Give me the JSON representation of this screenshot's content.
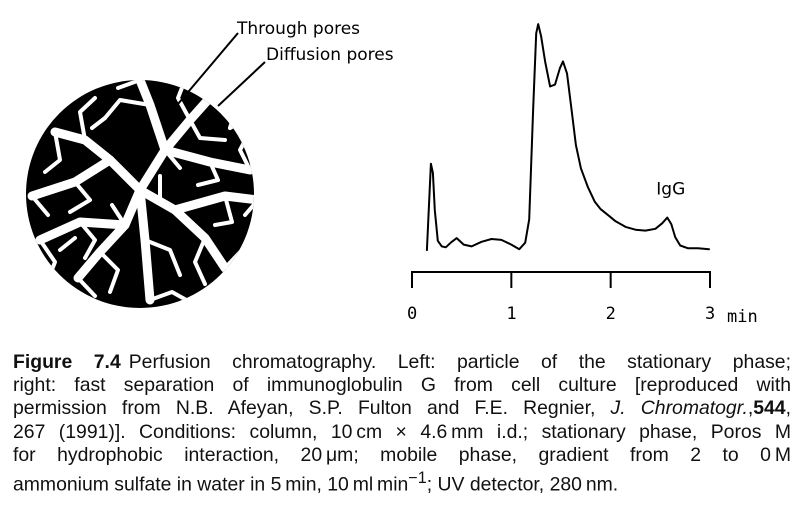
{
  "particle": {
    "label_through": "Through pores",
    "label_diffusion": "Diffusion pores"
  },
  "chart_data": {
    "type": "line",
    "title": "",
    "xlabel": "min",
    "ylabel": "",
    "xlim": [
      0,
      3
    ],
    "xticks": [
      "0",
      "1",
      "2",
      "3"
    ],
    "grid": false,
    "annotations": [
      {
        "text": "IgG",
        "x": 2.58,
        "y": 0.62
      }
    ],
    "series": [
      {
        "x": [
          0.15,
          0.19,
          0.21,
          0.23,
          0.26,
          0.3,
          0.34,
          0.39,
          0.45,
          0.52,
          0.6,
          0.7,
          0.8,
          0.9,
          1.0,
          1.08,
          1.14,
          1.18,
          1.22,
          1.25,
          1.27,
          1.3,
          1.34,
          1.39,
          1.44,
          1.49,
          1.52,
          1.56,
          1.61,
          1.65,
          1.7,
          1.77,
          1.84,
          1.9,
          1.97,
          2.05,
          2.15,
          2.25,
          2.35,
          2.45,
          2.52,
          2.57,
          2.61,
          2.65,
          2.7,
          2.78,
          2.88,
          2.99
        ],
        "y": [
          0.02,
          0.95,
          0.85,
          0.45,
          0.12,
          0.06,
          0.05,
          0.1,
          0.15,
          0.08,
          0.06,
          0.11,
          0.14,
          0.13,
          0.08,
          0.03,
          0.1,
          0.35,
          1.55,
          2.35,
          2.45,
          2.32,
          2.05,
          1.78,
          1.8,
          1.98,
          2.05,
          1.92,
          1.5,
          1.15,
          0.9,
          0.7,
          0.54,
          0.46,
          0.4,
          0.33,
          0.27,
          0.24,
          0.23,
          0.25,
          0.31,
          0.37,
          0.3,
          0.16,
          0.07,
          0.04,
          0.04,
          0.03
        ]
      }
    ]
  },
  "caption": {
    "label": "Figure 7.4",
    "text_1": "Perfusion chromatography. Left: particle of the stationary phase;",
    "text_2": "right: fast separation of immunoglobulin G from cell culture [reproduced with",
    "text_3a": "permission from N.B. Afeyan, S.P. Fulton and F.E. Regnier, ",
    "journal": "J. Chromatogr.",
    "text_3b": ",",
    "volume": "544",
    "text_3c": ",",
    "text_4": "267 (1991)]. Conditions: column, 10 cm × 4.6 mm i.d.; stationary phase, Poros M",
    "text_5": "for hydrophobic interaction, 20 μm; mobile phase, gradient from 2 to 0 M",
    "text_6a": "ammonium sulfate in water in 5 min, 10 ml min",
    "text_6sup": "−1",
    "text_6b": "; UV detector, 280 nm."
  }
}
